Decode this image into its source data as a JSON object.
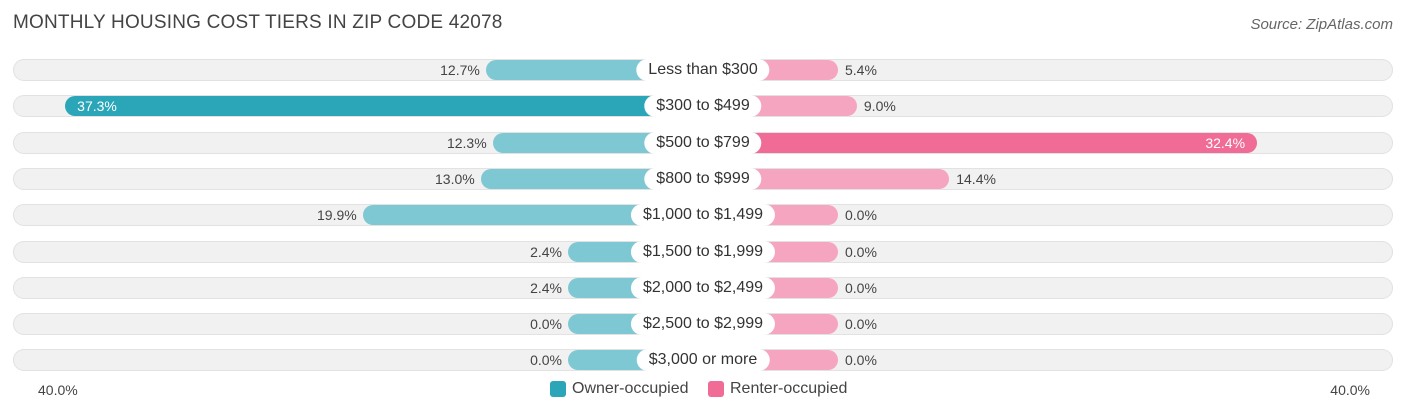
{
  "title": "MONTHLY HOUSING COST TIERS IN ZIP CODE 42078",
  "source": "Source: ZipAtlas.com",
  "colors": {
    "owner": "#7ec8d3",
    "owner_strong": "#2aa6b8",
    "renter": "#f6a5c0",
    "renter_strong": "#f06b95"
  },
  "chart_data": {
    "type": "bar",
    "orientation": "horizontal-diverging",
    "categories": [
      "Less than $300",
      "$300 to $499",
      "$500 to $799",
      "$800 to $999",
      "$1,000 to $1,499",
      "$1,500 to $1,999",
      "$2,000 to $2,499",
      "$2,500 to $2,999",
      "$3,000 or more"
    ],
    "series": [
      {
        "name": "Owner-occupied",
        "values": [
          12.7,
          37.3,
          12.3,
          13.0,
          19.9,
          2.4,
          2.4,
          0.0,
          0.0
        ]
      },
      {
        "name": "Renter-occupied",
        "values": [
          5.4,
          9.0,
          32.4,
          14.4,
          0.0,
          0.0,
          0.0,
          0.0,
          0.0
        ]
      }
    ],
    "value_labels": {
      "owner": [
        "12.7%",
        "37.3%",
        "12.3%",
        "13.0%",
        "19.9%",
        "2.4%",
        "2.4%",
        "0.0%",
        "0.0%"
      ],
      "renter": [
        "5.4%",
        "9.0%",
        "32.4%",
        "14.4%",
        "0.0%",
        "0.0%",
        "0.0%",
        "0.0%",
        "0.0%"
      ]
    },
    "axis": {
      "min_label": "40.0%",
      "max_label": "40.0%",
      "range": [
        0,
        40
      ]
    },
    "legend": {
      "placement": "bottom-center",
      "items": [
        "Owner-occupied",
        "Renter-occupied"
      ]
    }
  }
}
